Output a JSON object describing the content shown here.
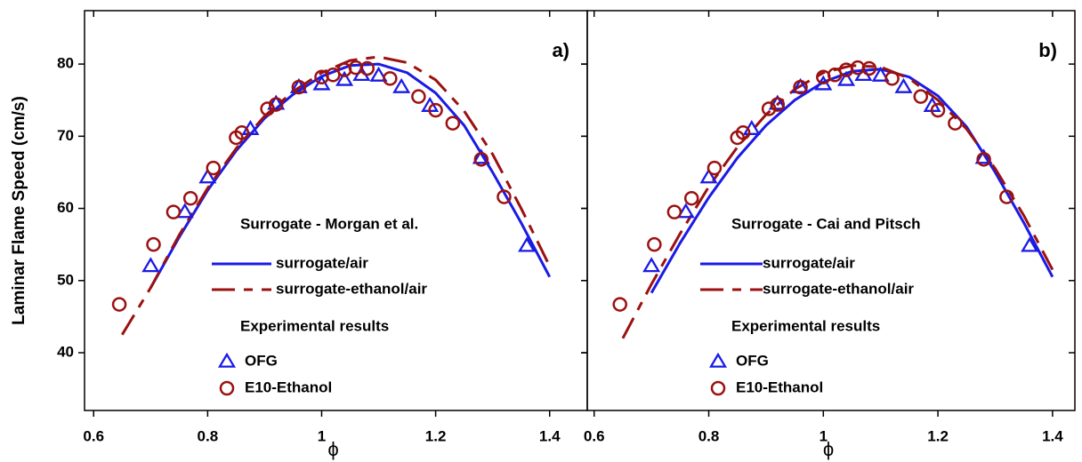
{
  "chart_data": [
    {
      "type": "line",
      "panel_label": "a)",
      "ylabel": "Laminar Flame Speed (cm/s)",
      "xlabel": "ϕ",
      "legend_title": "Surrogate - Morgan et al.",
      "experiment_title": "Experimental results",
      "xlim": [
        0.584,
        1.466
      ],
      "xticks": [
        0.6,
        0.8,
        1,
        1.2,
        1.4
      ],
      "ylim": [
        32,
        87.4
      ],
      "yticks": [
        40,
        50,
        60,
        70,
        80
      ],
      "ytick_labels": true,
      "series": [
        {
          "name": "surrogate/air",
          "kind": "solid",
          "color": "#1a1ae6",
          "x": [
            0.7,
            0.75,
            0.8,
            0.85,
            0.9,
            0.95,
            1.0,
            1.05,
            1.1,
            1.15,
            1.2,
            1.25,
            1.3,
            1.35,
            1.4
          ],
          "values": [
            49,
            56,
            62.5,
            68,
            72.5,
            75.8,
            78.3,
            79.8,
            80,
            78.8,
            76,
            71.5,
            65,
            58,
            50.5
          ]
        },
        {
          "name": "surrogate-ethanol/air",
          "kind": "dashed",
          "color": "#9b1111",
          "x": [
            0.65,
            0.7,
            0.75,
            0.8,
            0.85,
            0.9,
            0.95,
            1.0,
            1.05,
            1.1,
            1.15,
            1.2,
            1.25,
            1.3,
            1.35,
            1.4
          ],
          "values": [
            42.5,
            49,
            56.3,
            62.8,
            68.3,
            72.8,
            76.2,
            78.8,
            80.5,
            81,
            80.2,
            77.8,
            73.5,
            67.5,
            60,
            52
          ]
        },
        {
          "name": "OFG",
          "kind": "triangle",
          "color": "#1a1ae6",
          "x": [
            0.7,
            0.76,
            0.8,
            0.875,
            0.92,
            0.96,
            1.0,
            1.04,
            1.07,
            1.1,
            1.14,
            1.19,
            1.28,
            1.36
          ],
          "values": [
            52,
            59.5,
            64.3,
            71,
            74.5,
            76.8,
            77.2,
            77.8,
            78.5,
            78.4,
            76.8,
            74.2,
            67,
            54.8
          ]
        },
        {
          "name": "E10-Ethanol",
          "kind": "circle",
          "color": "#9b1111",
          "x": [
            0.645,
            0.705,
            0.74,
            0.77,
            0.81,
            0.85,
            0.86,
            0.905,
            0.92,
            0.96,
            1.0,
            1.02,
            1.04,
            1.06,
            1.08,
            1.12,
            1.17,
            1.2,
            1.23,
            1.28,
            1.32
          ],
          "values": [
            46.7,
            55,
            59.5,
            61.4,
            65.6,
            69.8,
            70.5,
            73.8,
            74.4,
            76.8,
            78.2,
            78.5,
            79.2,
            79.5,
            79.4,
            78,
            75.5,
            73.6,
            71.8,
            66.8,
            61.6
          ]
        }
      ]
    },
    {
      "type": "line",
      "panel_label": "b)",
      "xlabel": "ϕ",
      "legend_title": "Surrogate - Cai and Pitsch",
      "experiment_title": "Experimental results",
      "xlim": [
        0.588,
        1.439
      ],
      "xticks": [
        0.6,
        0.8,
        1,
        1.2,
        1.4
      ],
      "ylim": [
        32,
        87.4
      ],
      "yticks": [
        40,
        50,
        60,
        70,
        80
      ],
      "ytick_labels": false,
      "series": [
        {
          "name": "surrogate/air",
          "kind": "solid",
          "color": "#1a1ae6",
          "x": [
            0.7,
            0.75,
            0.8,
            0.85,
            0.9,
            0.95,
            1.0,
            1.05,
            1.1,
            1.15,
            1.2,
            1.25,
            1.3,
            1.35,
            1.4
          ],
          "values": [
            48.3,
            55.2,
            61.5,
            67,
            71.5,
            75,
            77.5,
            79,
            79.3,
            78.2,
            75.6,
            71.3,
            65,
            58,
            50.5
          ]
        },
        {
          "name": "surrogate-ethanol/air",
          "kind": "dashed",
          "color": "#9b1111",
          "x": [
            0.65,
            0.7,
            0.75,
            0.8,
            0.85,
            0.9,
            0.95,
            1.0,
            1.05,
            1.1,
            1.15,
            1.2,
            1.25,
            1.3,
            1.35,
            1.4
          ],
          "values": [
            42,
            49.5,
            56.5,
            63,
            68.5,
            73,
            76.5,
            78.8,
            79.8,
            79.6,
            78,
            75,
            71,
            65.5,
            59,
            51.5
          ]
        },
        {
          "name": "OFG",
          "kind": "triangle",
          "color": "#1a1ae6",
          "x": [
            0.7,
            0.76,
            0.8,
            0.875,
            0.92,
            0.96,
            1.0,
            1.04,
            1.07,
            1.1,
            1.14,
            1.19,
            1.28,
            1.36
          ],
          "values": [
            52,
            59.5,
            64.3,
            71,
            74.5,
            76.8,
            77.2,
            77.8,
            78.5,
            78.4,
            76.8,
            74.2,
            67,
            54.8
          ]
        },
        {
          "name": "E10-Ethanol",
          "kind": "circle",
          "color": "#9b1111",
          "x": [
            0.645,
            0.705,
            0.74,
            0.77,
            0.81,
            0.85,
            0.86,
            0.905,
            0.92,
            0.96,
            1.0,
            1.02,
            1.04,
            1.06,
            1.08,
            1.12,
            1.17,
            1.2,
            1.23,
            1.28,
            1.32
          ],
          "values": [
            46.7,
            55,
            59.5,
            61.4,
            65.6,
            69.8,
            70.5,
            73.8,
            74.4,
            76.8,
            78.2,
            78.5,
            79.2,
            79.5,
            79.4,
            78,
            75.5,
            73.6,
            71.8,
            66.8,
            61.6
          ]
        }
      ]
    }
  ]
}
